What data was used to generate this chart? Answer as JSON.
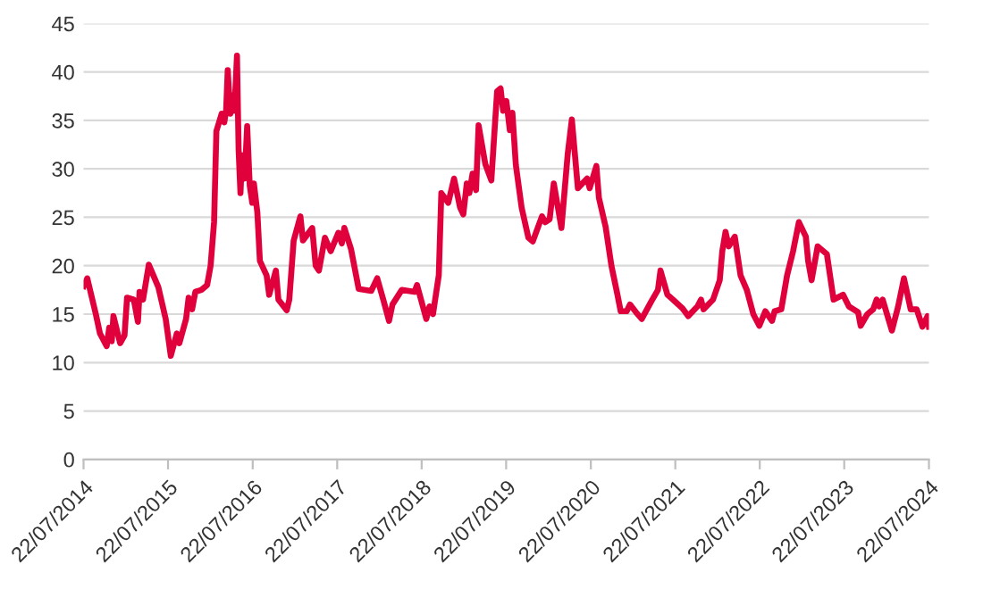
{
  "chart_data": {
    "type": "line",
    "x": [
      "2014-07-23",
      "2014-08-07",
      "2014-09-13",
      "2014-10-01",
      "2014-10-30",
      "2014-11-10",
      "2014-11-21",
      "2014-11-28",
      "2014-12-27",
      "2015-01-15",
      "2015-01-26",
      "2015-02-24",
      "2015-03-14",
      "2015-03-21",
      "2015-04-05",
      "2015-04-30",
      "2015-06-10",
      "2015-07-12",
      "2015-08-03",
      "2015-08-29",
      "2015-09-09",
      "2015-10-08",
      "2015-10-19",
      "2015-11-03",
      "2015-11-17",
      "2015-12-13",
      "2016-01-07",
      "2016-01-22",
      "2016-02-06",
      "2016-02-16",
      "2016-03-10",
      "2016-03-21",
      "2016-03-29",
      "2016-04-05",
      "2016-04-16",
      "2016-04-23",
      "2016-05-04",
      "2016-05-15",
      "2016-05-22",
      "2016-05-30",
      "2016-06-06",
      "2016-06-17",
      "2016-06-28",
      "2016-07-09",
      "2016-07-20",
      "2016-07-27",
      "2016-08-11",
      "2016-08-22",
      "2016-09-20",
      "2016-10-01",
      "2016-10-30",
      "2016-11-10",
      "2016-12-16",
      "2016-12-27",
      "2017-01-15",
      "2017-02-13",
      "2017-02-24",
      "2017-04-05",
      "2017-04-20",
      "2017-05-04",
      "2017-05-30",
      "2017-06-24",
      "2017-07-27",
      "2017-08-11",
      "2017-08-22",
      "2017-09-20",
      "2017-10-23",
      "2017-12-16",
      "2018-01-11",
      "2018-02-06",
      "2018-03-03",
      "2018-03-18",
      "2018-04-27",
      "2018-06-21",
      "2018-07-02",
      "2018-08-11",
      "2018-08-25",
      "2018-09-09",
      "2018-10-04",
      "2018-10-15",
      "2018-11-14",
      "2018-12-09",
      "2019-01-04",
      "2019-01-18",
      "2019-02-02",
      "2019-02-13",
      "2019-02-27",
      "2019-03-14",
      "2019-03-25",
      "2019-04-23",
      "2019-05-19",
      "2019-06-13",
      "2019-06-28",
      "2019-07-09",
      "2019-07-23",
      "2019-08-07",
      "2019-08-18",
      "2019-09-02",
      "2019-09-27",
      "2019-10-26",
      "2019-11-14",
      "2019-12-24",
      "2020-01-07",
      "2020-01-26",
      "2020-02-13",
      "2020-03-17",
      "2020-04-13",
      "2020-05-01",
      "2020-05-27",
      "2020-07-06",
      "2020-07-17",
      "2020-08-15",
      "2020-08-26",
      "2020-09-24",
      "2020-10-19",
      "2020-11-14",
      "2020-11-28",
      "2020-12-24",
      "2021-01-07",
      "2021-02-02",
      "2021-02-27",
      "2021-04-09",
      "2021-05-08",
      "2021-05-19",
      "2021-06-18",
      "2021-07-12",
      "2021-08-22",
      "2021-09-16",
      "2021-10-26",
      "2021-11-10",
      "2021-11-21",
      "2022-01-01",
      "2022-01-30",
      "2022-02-10",
      "2022-02-24",
      "2022-03-10",
      "2022-04-05",
      "2022-04-30",
      "2022-05-27",
      "2022-06-24",
      "2022-07-20",
      "2022-08-15",
      "2022-09-13",
      "2022-09-24",
      "2022-10-23",
      "2022-11-17",
      "2022-12-13",
      "2023-01-07",
      "2023-02-06",
      "2023-02-16",
      "2023-03-03",
      "2023-03-29",
      "2023-05-08",
      "2023-06-06",
      "2023-07-17",
      "2023-08-11",
      "2023-09-20",
      "2023-10-01",
      "2023-10-30",
      "2023-11-24",
      "2023-12-09",
      "2023-12-20",
      "2024-01-04",
      "2024-02-13",
      "2024-03-10",
      "2024-04-05",
      "2024-05-04",
      "2024-05-30",
      "2024-06-24",
      "2024-07-16",
      "2024-07-22"
    ],
    "series": [
      {
        "color": "#e0003c",
        "values": [
          17.9,
          18.7,
          15,
          13,
          11.7,
          13.6,
          12.2,
          14.8,
          12,
          12.8,
          16.7,
          16.5,
          14.2,
          17.3,
          16.5,
          20.1,
          17.8,
          14.5,
          10.7,
          13,
          12,
          14.5,
          16.7,
          15.5,
          17.3,
          17.5,
          18,
          20,
          24.5,
          33.9,
          35.7,
          34.8,
          36,
          40.2,
          35.7,
          37.6,
          36,
          41.7,
          32,
          27.5,
          31.4,
          29,
          34.4,
          28.3,
          26.5,
          28.5,
          25.5,
          20.5,
          19,
          17,
          19.5,
          16.5,
          15.4,
          16.5,
          22.6,
          25.1,
          22.6,
          23.9,
          20,
          19.5,
          22.9,
          21.5,
          23.4,
          22.3,
          23.9,
          21.7,
          17.6,
          17.4,
          18.7,
          16.5,
          14.3,
          16,
          17.5,
          17.3,
          18,
          14.5,
          15.8,
          15,
          19,
          27.5,
          26.5,
          29,
          26,
          25.3,
          28.5,
          27.5,
          29.5,
          27.8,
          34.5,
          30.5,
          28.8,
          38,
          38.3,
          36,
          37,
          34,
          35.8,
          30.4,
          26,
          22.9,
          22.5,
          25.1,
          24.5,
          24.8,
          28.5,
          23.9,
          31.5,
          35.1,
          28,
          29,
          28,
          30.3,
          27,
          24,
          20,
          17,
          15.3,
          15.3,
          16,
          15.2,
          14.5,
          16.3,
          17.5,
          19.5,
          17,
          16.5,
          15.6,
          14.8,
          15.8,
          16.5,
          15.5,
          16.5,
          18.5,
          21.5,
          23.5,
          22,
          23,
          19,
          17.5,
          15,
          13.8,
          15.3,
          14.3,
          15.3,
          15.5,
          19,
          21.5,
          24.5,
          23,
          20.5,
          18.5,
          22,
          21.2,
          16.5,
          17,
          15.8,
          15.2,
          13.8,
          15,
          15.5,
          16.5,
          15.8,
          16.5,
          13.3,
          15.7,
          18.7,
          15.5,
          15.5,
          13.7,
          14.8,
          13.7
        ]
      }
    ],
    "xlim": [
      "2014-07-22",
      "2024-07-22"
    ],
    "xticks": [
      {
        "value": "2014-07-22",
        "label": "22/07/2014"
      },
      {
        "value": "2015-07-22",
        "label": "22/07/2015"
      },
      {
        "value": "2016-07-22",
        "label": "22/07/2016"
      },
      {
        "value": "2017-07-22",
        "label": "22/07/2017"
      },
      {
        "value": "2018-07-22",
        "label": "22/07/2018"
      },
      {
        "value": "2019-07-22",
        "label": "22/07/2019"
      },
      {
        "value": "2020-07-22",
        "label": "22/07/2020"
      },
      {
        "value": "2021-07-22",
        "label": "22/07/2021"
      },
      {
        "value": "2022-07-22",
        "label": "22/07/2022"
      },
      {
        "value": "2023-07-22",
        "label": "22/07/2023"
      },
      {
        "value": "2024-07-22",
        "label": "22/07/2024"
      }
    ],
    "ylim": [
      0,
      45
    ],
    "yticks": [
      0,
      5,
      10,
      15,
      20,
      25,
      30,
      35,
      40,
      45
    ],
    "grid": "y",
    "marker": "none",
    "line_style": "solid"
  }
}
